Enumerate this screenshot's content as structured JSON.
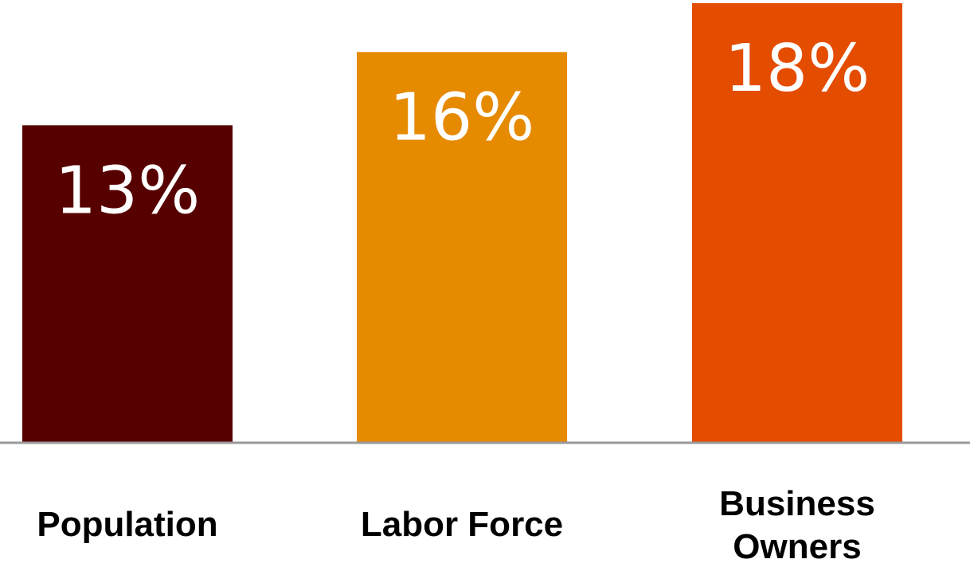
{
  "chart_data": {
    "type": "bar",
    "categories": [
      "Population",
      "Labor Force",
      "Business Owners"
    ],
    "category_lines": [
      [
        "Population"
      ],
      [
        "Labor Force"
      ],
      [
        "Business",
        "Owners"
      ]
    ],
    "values": [
      13,
      16,
      18
    ],
    "value_labels": [
      "13%",
      "16%",
      "18%"
    ],
    "value_unit": "%",
    "bar_colors": [
      "#570000",
      "#e68a00",
      "#e44c00"
    ],
    "ylim": [
      0,
      18
    ],
    "grid": false,
    "legend": "none",
    "title": "",
    "xlabel": "",
    "ylabel": ""
  },
  "colors": {
    "axis": "#999999",
    "value_text": "#ffffff",
    "label_text": "#000000"
  }
}
